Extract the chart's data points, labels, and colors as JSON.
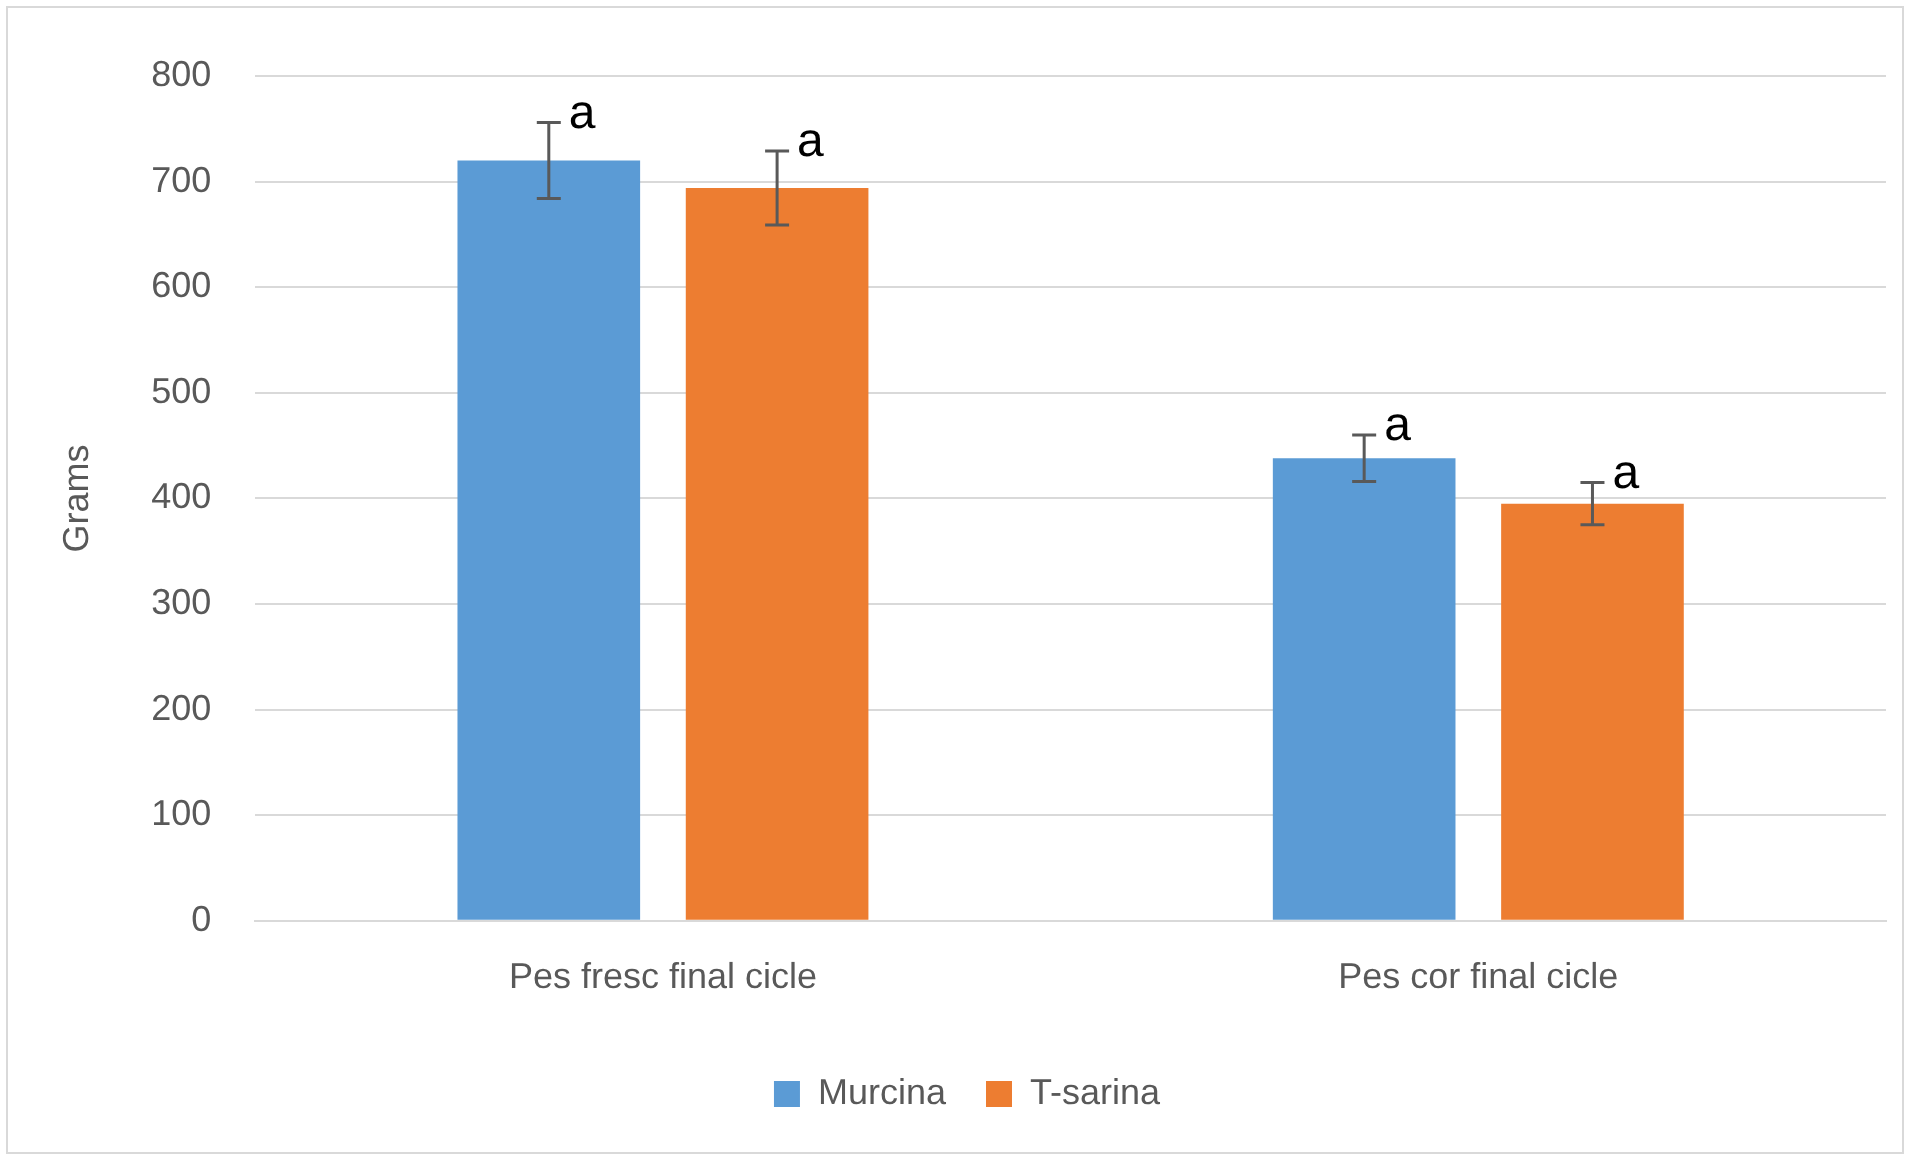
{
  "chart_data": {
    "type": "bar",
    "ylabel": "Grams",
    "categories": [
      "Pes fresc final cicle",
      "Pes cor final cicle"
    ],
    "series": [
      {
        "name": "Murcina",
        "color": "#5b9bd5",
        "values": [
          720,
          438
        ],
        "errors": [
          36,
          22
        ]
      },
      {
        "name": "T-sarina",
        "color": "#ed7d31",
        "values": [
          694,
          395
        ],
        "errors": [
          35,
          20
        ]
      }
    ],
    "ylim": [
      0,
      800
    ],
    "yticks": [
      0,
      100,
      200,
      300,
      400,
      500,
      600,
      700,
      800
    ],
    "grid": "y",
    "legend": "bottom",
    "annotations": [
      "a",
      "a",
      "a",
      "a"
    ]
  }
}
